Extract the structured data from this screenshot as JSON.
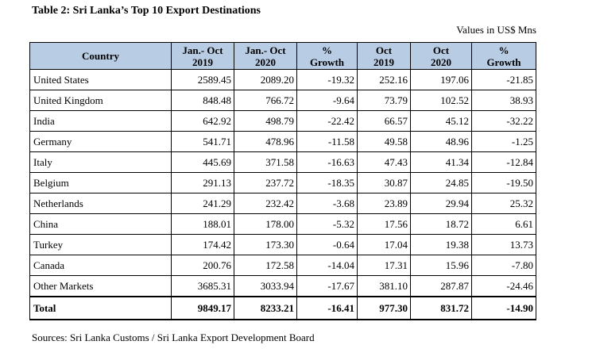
{
  "title": "Table 2: Sri Lanka’s Top 10 Export Destinations",
  "units": "Values in US$ Mns",
  "headers": {
    "country": "Country",
    "jan_oct_2019": [
      "Jan.- Oct",
      "2019"
    ],
    "jan_oct_2020": [
      "Jan.- Oct",
      "2020"
    ],
    "growth_1": [
      "%",
      "Growth"
    ],
    "oct_2019": [
      "Oct",
      "2019"
    ],
    "oct_2020": [
      "Oct",
      "2020"
    ],
    "growth_2": [
      "%",
      "Growth"
    ]
  },
  "rows": [
    {
      "country": "United States",
      "jo2019": "2589.45",
      "jo2020": "2089.20",
      "g1": "-19.32",
      "o2019": "252.16",
      "o2020": "197.06",
      "g2": "-21.85"
    },
    {
      "country": "United Kingdom",
      "jo2019": "848.48",
      "jo2020": "766.72",
      "g1": "-9.64",
      "o2019": "73.79",
      "o2020": "102.52",
      "g2": "38.93"
    },
    {
      "country": "India",
      "jo2019": "642.92",
      "jo2020": "498.79",
      "g1": "-22.42",
      "o2019": "66.57",
      "o2020": "45.12",
      "g2": "-32.22"
    },
    {
      "country": "Germany",
      "jo2019": "541.71",
      "jo2020": "478.96",
      "g1": "-11.58",
      "o2019": "49.58",
      "o2020": "48.96",
      "g2": "-1.25"
    },
    {
      "country": "Italy",
      "jo2019": "445.69",
      "jo2020": "371.58",
      "g1": "-16.63",
      "o2019": "47.43",
      "o2020": "41.34",
      "g2": "-12.84"
    },
    {
      "country": "Belgium",
      "jo2019": "291.13",
      "jo2020": "237.72",
      "g1": "-18.35",
      "o2019": "30.87",
      "o2020": "24.85",
      "g2": "-19.50"
    },
    {
      "country": "Netherlands",
      "jo2019": "241.29",
      "jo2020": "232.42",
      "g1": "-3.68",
      "o2019": "23.89",
      "o2020": "29.94",
      "g2": "25.32"
    },
    {
      "country": "China",
      "jo2019": "188.01",
      "jo2020": "178.00",
      "g1": "-5.32",
      "o2019": "17.56",
      "o2020": "18.72",
      "g2": "6.61"
    },
    {
      "country": "Turkey",
      "jo2019": "174.42",
      "jo2020": "173.30",
      "g1": "-0.64",
      "o2019": "17.04",
      "o2020": "19.38",
      "g2": "13.73"
    },
    {
      "country": "Canada",
      "jo2019": "200.76",
      "jo2020": "172.58",
      "g1": "-14.04",
      "o2019": "17.31",
      "o2020": "15.96",
      "g2": "-7.80"
    },
    {
      "country": "Other Markets",
      "jo2019": "3685.31",
      "jo2020": "3033.94",
      "g1": "-17.67",
      "o2019": "381.10",
      "o2020": "287.87",
      "g2": "-24.46"
    }
  ],
  "total": {
    "country": "Total",
    "jo2019": "9849.17",
    "jo2020": "8233.21",
    "g1": "-16.41",
    "o2019": "977.30",
    "o2020": "831.72",
    "g2": "-14.90"
  },
  "source": "Sources:  Sri Lanka Customs / Sri Lanka Export Development Board"
}
